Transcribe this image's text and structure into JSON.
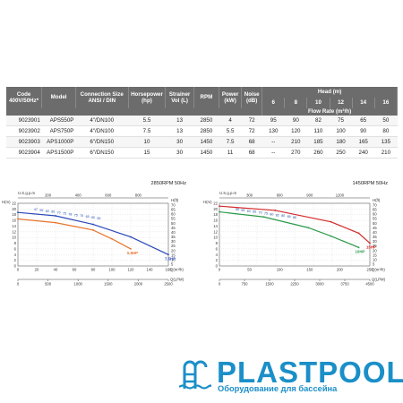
{
  "table": {
    "headers": {
      "code": "Code 400V/50Hz*",
      "model": "Model",
      "connection": "Connection Size ANSI / DIN",
      "horsepower": "Horsepower (hp)",
      "strainer": "Strainer Vol (L)",
      "rpm": "RPM",
      "power": "Power (kW)",
      "noise": "Noise (dB)",
      "head_group": "Head (m)",
      "flow_group": "Flow Rate (m³/h)",
      "head_values": [
        "6",
        "8",
        "10",
        "12",
        "14",
        "16"
      ]
    },
    "rows": [
      {
        "code": "9023901",
        "model": "APS550P",
        "connection": "4\"/DN100",
        "hp": "5.5",
        "strainer": "13",
        "rpm": "2850",
        "power": "4",
        "noise": "72",
        "flows": [
          "95",
          "90",
          "82",
          "75",
          "65",
          "50"
        ]
      },
      {
        "code": "9023902",
        "model": "APS750P",
        "connection": "4\"/DN100",
        "hp": "7.5",
        "strainer": "13",
        "rpm": "2850",
        "power": "5.5",
        "noise": "72",
        "flows": [
          "130",
          "120",
          "110",
          "100",
          "90",
          "80"
        ]
      },
      {
        "code": "9023903",
        "model": "APS1000P",
        "connection": "6\"/DN150",
        "hp": "10",
        "strainer": "30",
        "rpm": "1450",
        "power": "7.5",
        "noise": "68",
        "flows": [
          "--",
          "210",
          "185",
          "180",
          "165",
          "135"
        ]
      },
      {
        "code": "9023904",
        "model": "APS1500P",
        "connection": "6\"/DN150",
        "hp": "15",
        "strainer": "30",
        "rpm": "1450",
        "power": "11",
        "noise": "68",
        "flows": [
          "--",
          "270",
          "260",
          "250",
          "240",
          "210"
        ]
      }
    ]
  },
  "chart_data": [
    {
      "type": "line",
      "title": "2850RPM  50Hz",
      "top_axis_label": "U.S.g.p.m",
      "top_ticks": [
        "200",
        "400",
        "600",
        "800"
      ],
      "bottom_label": "Q(LPM)",
      "bottom_ticks": [
        "0",
        "500",
        "1000",
        "1500",
        "2000",
        "2500"
      ],
      "q_m3h_label": "Q(m³/h)",
      "q_m3h_ticks": [
        "0",
        "20",
        "40",
        "60",
        "80",
        "100",
        "120",
        "140",
        "160"
      ],
      "y_left_label": "H(m)",
      "y_left_ticks": [
        "0",
        "2",
        "4",
        "6",
        "8",
        "10",
        "12",
        "14",
        "16",
        "18",
        "20",
        "22"
      ],
      "y_right_label": "H(ft)",
      "y_right_ticks": [
        "5",
        "10",
        "15",
        "20",
        "25",
        "30",
        "35",
        "40",
        "45",
        "50",
        "55",
        "60",
        "65",
        "70"
      ],
      "ylim": [
        0,
        22
      ],
      "xlim": [
        0,
        160
      ],
      "series": [
        {
          "name": "5.5HP",
          "color": "#e8742a",
          "x": [
            0,
            40,
            80,
            100,
            120
          ],
          "y": [
            16.5,
            15.2,
            12.6,
            9.5,
            6.0
          ]
        },
        {
          "name": "7.5HP",
          "color": "#2a48b8",
          "x": [
            0,
            40,
            80,
            120,
            160
          ],
          "y": [
            18.8,
            17.6,
            14.6,
            10.2,
            4.0
          ]
        }
      ],
      "efficiency_labels": [
        "47",
        "55",
        "60",
        "65",
        "70",
        "75",
        "78",
        "75",
        "70",
        "65",
        "60",
        "55"
      ]
    },
    {
      "type": "line",
      "title": "1450RPM  50Hz",
      "top_axis_label": "U.S.g.p.m",
      "top_ticks": [
        "300",
        "600",
        "900",
        "1200"
      ],
      "bottom_label": "Q(LPM)",
      "bottom_ticks": [
        "0",
        "750",
        "1500",
        "2250",
        "3000",
        "3750",
        "4500"
      ],
      "q_m3h_label": "Q(m³/h)",
      "q_m3h_ticks": [
        "0",
        "50",
        "100",
        "150",
        "200",
        "250"
      ],
      "y_left_label": "H(m)",
      "y_left_ticks": [
        "0",
        "2",
        "4",
        "6",
        "8",
        "10",
        "12",
        "14",
        "16",
        "18",
        "20",
        "22"
      ],
      "y_right_label": "H(ft)",
      "y_right_ticks": [
        "5",
        "10",
        "15",
        "20",
        "25",
        "30",
        "35",
        "40",
        "45",
        "50",
        "55",
        "60",
        "65",
        "70"
      ],
      "ylim": [
        0,
        22
      ],
      "xlim": [
        0,
        270
      ],
      "series": [
        {
          "name": "10HP",
          "color": "#2a9a4a",
          "x": [
            0,
            80,
            160,
            200,
            250
          ],
          "y": [
            19.0,
            17.2,
            13.4,
            10.5,
            6.5
          ]
        },
        {
          "name": "15HP",
          "color": "#d42a2a",
          "x": [
            0,
            100,
            200,
            250,
            270
          ],
          "y": [
            21.0,
            19.5,
            15.5,
            11.5,
            8.0
          ]
        }
      ],
      "efficiency_labels": [
        "50",
        "55",
        "60",
        "65",
        "70",
        "75",
        "80",
        "82",
        "80",
        "85",
        "85"
      ]
    }
  ],
  "brand": {
    "name": "PLASTPOOL",
    "subtitle": "Оборудование для бассейна",
    "color": "#1b8fc8"
  }
}
